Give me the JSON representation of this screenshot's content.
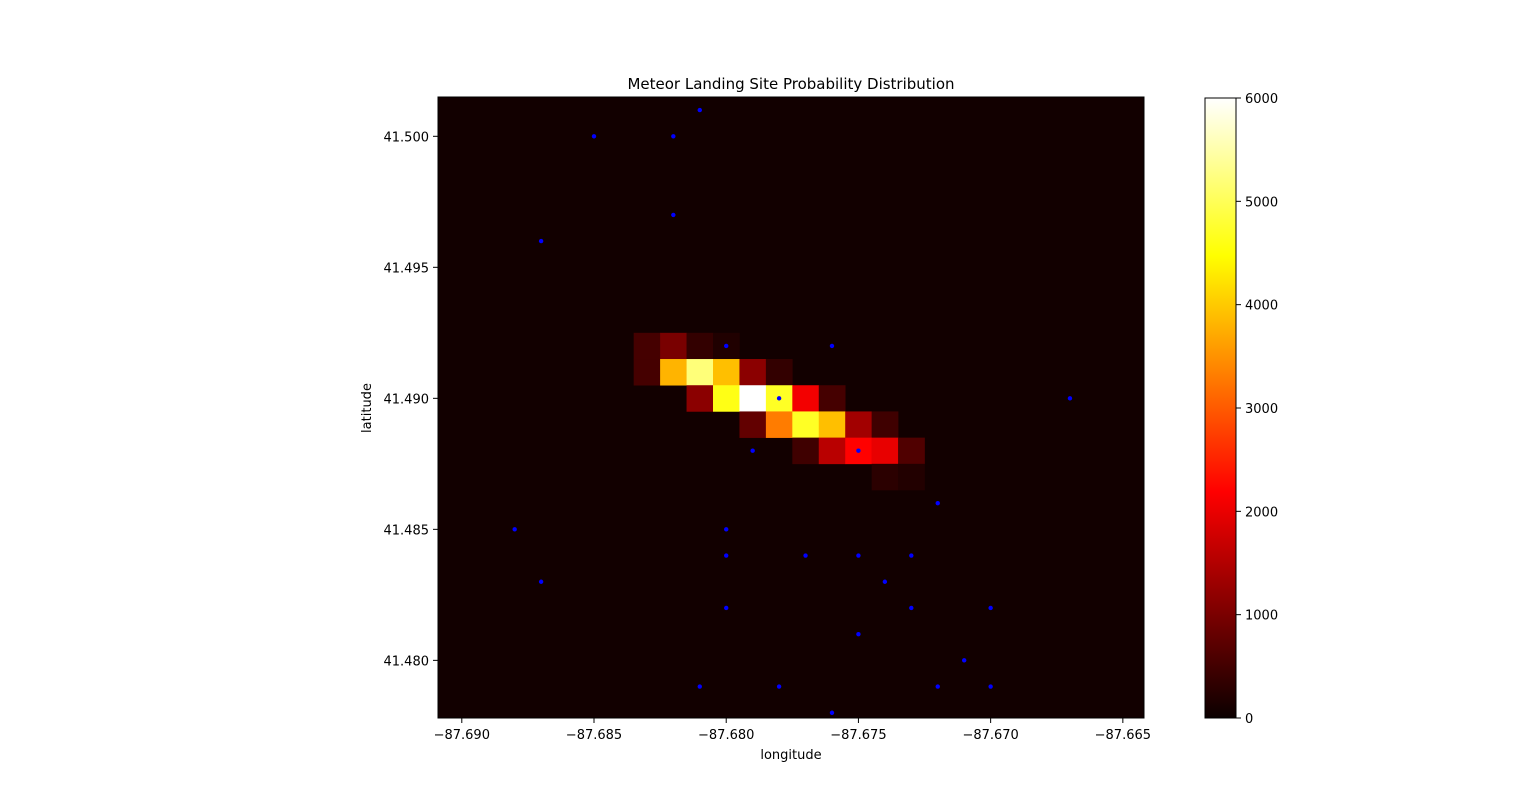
{
  "chart_data": {
    "type": "heatmap",
    "title": "Meteor Landing Site Probability Distribution",
    "xlabel": "longitude",
    "ylabel": "latitude",
    "xlim": [
      -87.6909,
      -87.6642
    ],
    "ylim": [
      41.4778,
      41.5015
    ],
    "x_ticks": [
      -87.69,
      -87.685,
      -87.68,
      -87.675,
      -87.67,
      -87.665
    ],
    "x_tick_labels": [
      "−87.690",
      "−87.685",
      "−87.680",
      "−87.675",
      "−87.670",
      "−87.665"
    ],
    "y_ticks": [
      41.48,
      41.485,
      41.49,
      41.495,
      41.5
    ],
    "y_tick_labels": [
      "41.480",
      "41.485",
      "41.490",
      "41.495",
      "41.500"
    ],
    "colormap": "hot",
    "colorbar": {
      "min": 0,
      "max": 6000,
      "ticks": [
        0,
        1000,
        2000,
        3000,
        4000,
        5000,
        6000
      ],
      "tick_labels": [
        "0",
        "1000",
        "2000",
        "3000",
        "4000",
        "5000",
        "6000"
      ]
    },
    "cell_size": {
      "lon": 0.001,
      "lat": 0.001
    },
    "background_value": 60,
    "cells": [
      {
        "lon": -87.683,
        "lat": 41.492,
        "value": 500
      },
      {
        "lon": -87.682,
        "lat": 41.492,
        "value": 950
      },
      {
        "lon": -87.681,
        "lat": 41.492,
        "value": 350
      },
      {
        "lon": -87.68,
        "lat": 41.492,
        "value": 180
      },
      {
        "lon": -87.683,
        "lat": 41.491,
        "value": 500
      },
      {
        "lon": -87.682,
        "lat": 41.491,
        "value": 3800
      },
      {
        "lon": -87.681,
        "lat": 41.491,
        "value": 5200
      },
      {
        "lon": -87.68,
        "lat": 41.491,
        "value": 3900
      },
      {
        "lon": -87.679,
        "lat": 41.491,
        "value": 1100
      },
      {
        "lon": -87.678,
        "lat": 41.491,
        "value": 350
      },
      {
        "lon": -87.681,
        "lat": 41.49,
        "value": 1100
      },
      {
        "lon": -87.68,
        "lat": 41.49,
        "value": 4600
      },
      {
        "lon": -87.679,
        "lat": 41.49,
        "value": 6000
      },
      {
        "lon": -87.678,
        "lat": 41.49,
        "value": 4700
      },
      {
        "lon": -87.677,
        "lat": 41.49,
        "value": 2000
      },
      {
        "lon": -87.676,
        "lat": 41.49,
        "value": 500
      },
      {
        "lon": -87.679,
        "lat": 41.489,
        "value": 750
      },
      {
        "lon": -87.678,
        "lat": 41.489,
        "value": 3300
      },
      {
        "lon": -87.677,
        "lat": 41.489,
        "value": 4700
      },
      {
        "lon": -87.676,
        "lat": 41.489,
        "value": 3900
      },
      {
        "lon": -87.675,
        "lat": 41.489,
        "value": 1300
      },
      {
        "lon": -87.674,
        "lat": 41.489,
        "value": 450
      },
      {
        "lon": -87.677,
        "lat": 41.488,
        "value": 450
      },
      {
        "lon": -87.676,
        "lat": 41.488,
        "value": 1500
      },
      {
        "lon": -87.675,
        "lat": 41.488,
        "value": 2200
      },
      {
        "lon": -87.674,
        "lat": 41.488,
        "value": 1900
      },
      {
        "lon": -87.673,
        "lat": 41.488,
        "value": 600
      },
      {
        "lon": -87.674,
        "lat": 41.487,
        "value": 280
      },
      {
        "lon": -87.673,
        "lat": 41.487,
        "value": 200
      }
    ],
    "points": {
      "color": "#0000ff",
      "coords": [
        [
          -87.681,
          41.501
        ],
        [
          -87.685,
          41.5
        ],
        [
          -87.682,
          41.5
        ],
        [
          -87.682,
          41.497
        ],
        [
          -87.687,
          41.496
        ],
        [
          -87.68,
          41.492
        ],
        [
          -87.676,
          41.492
        ],
        [
          -87.678,
          41.49
        ],
        [
          -87.667,
          41.49
        ],
        [
          -87.679,
          41.488
        ],
        [
          -87.675,
          41.488
        ],
        [
          -87.672,
          41.486
        ],
        [
          -87.688,
          41.485
        ],
        [
          -87.68,
          41.485
        ],
        [
          -87.68,
          41.484
        ],
        [
          -87.677,
          41.484
        ],
        [
          -87.675,
          41.484
        ],
        [
          -87.673,
          41.484
        ],
        [
          -87.687,
          41.483
        ],
        [
          -87.674,
          41.483
        ],
        [
          -87.68,
          41.482
        ],
        [
          -87.673,
          41.482
        ],
        [
          -87.67,
          41.482
        ],
        [
          -87.675,
          41.481
        ],
        [
          -87.671,
          41.48
        ],
        [
          -87.681,
          41.479
        ],
        [
          -87.678,
          41.479
        ],
        [
          -87.672,
          41.479
        ],
        [
          -87.67,
          41.479
        ],
        [
          -87.676,
          41.478
        ]
      ]
    }
  }
}
